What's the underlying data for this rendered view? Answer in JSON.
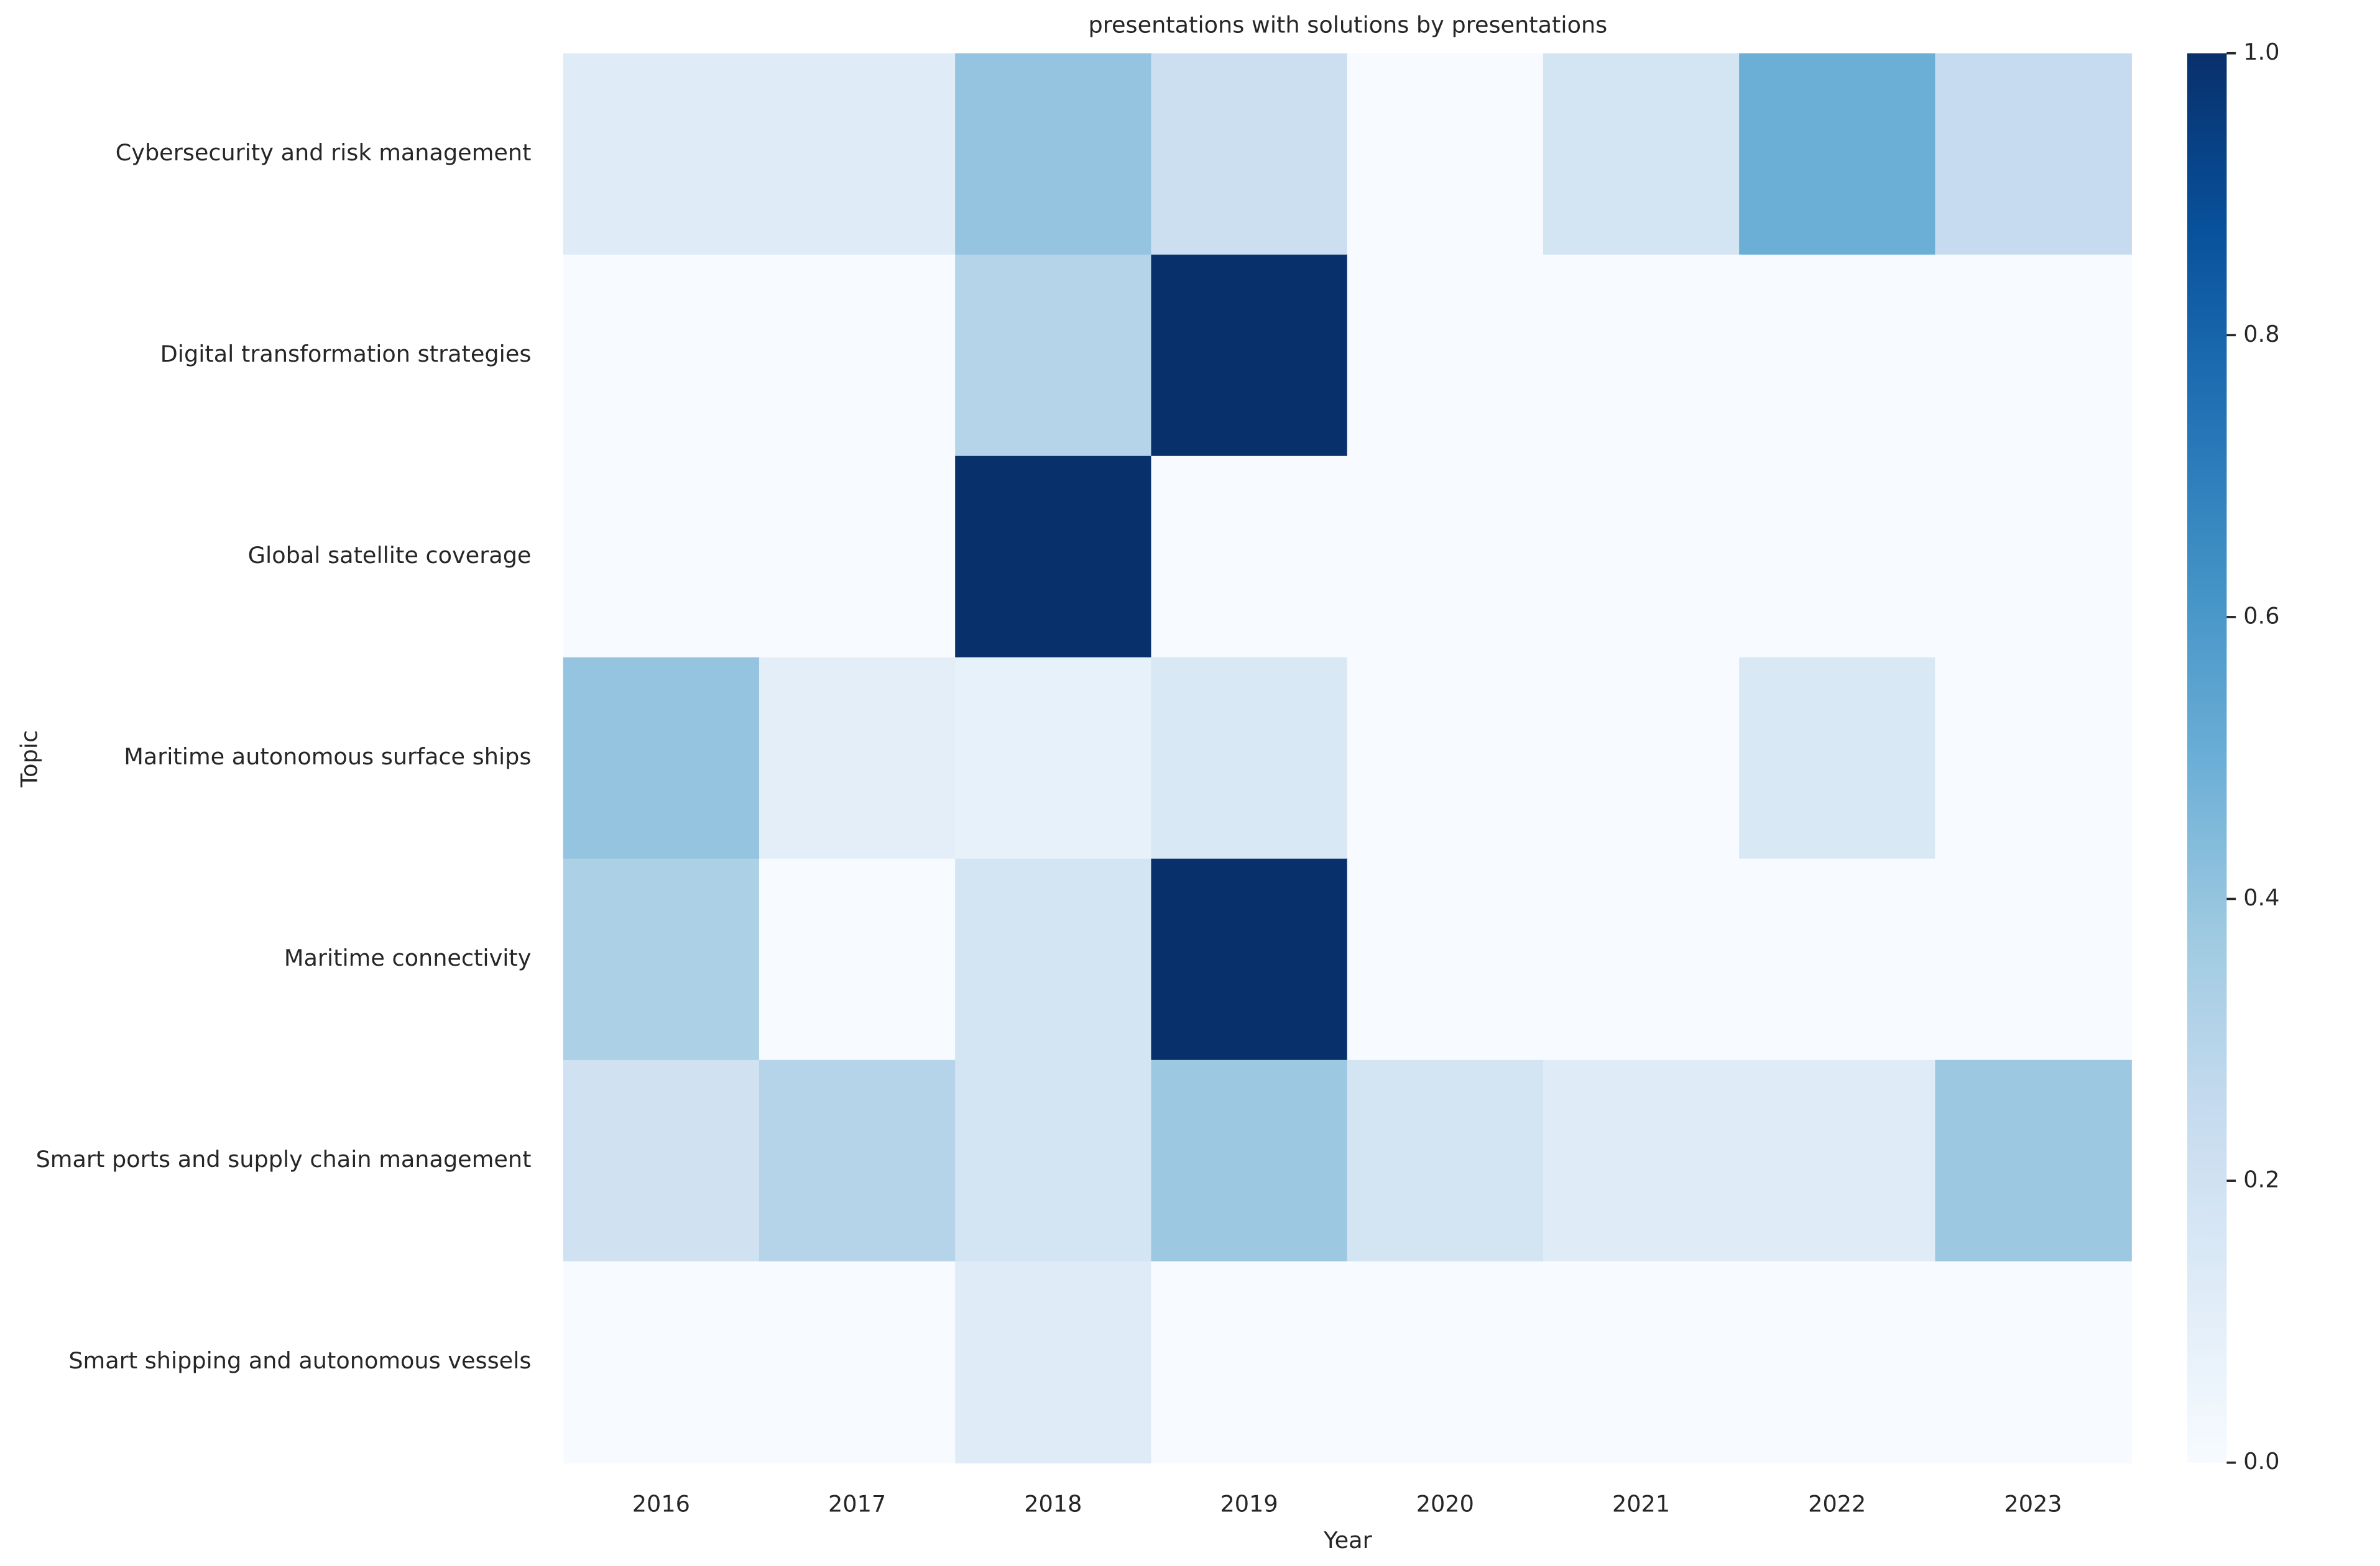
{
  "chart_data": {
    "type": "heatmap",
    "title": "presentations with solutions by presentations",
    "x_label": "Year",
    "y_label": "Topic",
    "x_categories": [
      "2016",
      "2017",
      "2018",
      "2019",
      "2020",
      "2021",
      "2022",
      "2023"
    ],
    "y_categories": [
      "Cybersecurity and risk management",
      "Digital transformation strategies",
      "Global satellite coverage",
      "Maritime autonomous surface ships",
      "Maritime connectivity",
      "Smart ports and supply chain management",
      "Smart shipping and autonomous vessels"
    ],
    "values": [
      [
        0.12,
        0.12,
        0.4,
        0.22,
        0,
        0.18,
        0.5,
        0.25
      ],
      [
        0,
        0,
        0.3,
        1,
        0,
        0,
        0,
        0
      ],
      [
        0,
        0,
        1,
        0,
        0,
        0,
        0,
        0
      ],
      [
        0.4,
        0.1,
        0.08,
        0.15,
        0,
        0,
        0.15,
        0
      ],
      [
        0.33,
        0,
        0.18,
        1,
        0,
        0,
        0,
        0
      ],
      [
        0.2,
        0.3,
        0.18,
        0.38,
        0.18,
        0.12,
        0.12,
        0.38
      ],
      [
        0,
        0,
        0.12,
        0,
        0,
        0,
        0,
        0
      ]
    ],
    "colormap": "Blues",
    "clim": [
      0,
      1
    ],
    "cticks": [
      {
        "value": 0,
        "label": "0.0"
      },
      0.2,
      0.4,
      0.6,
      0.8,
      {
        "value": 1,
        "label": "1.0"
      }
    ]
  }
}
